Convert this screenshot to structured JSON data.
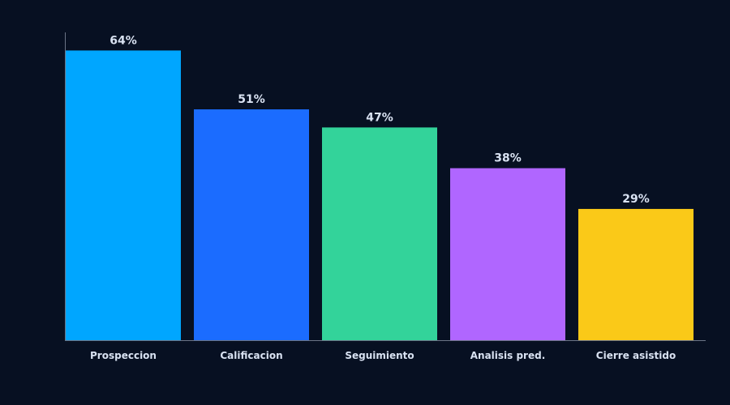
{
  "chart_data": {
    "type": "bar",
    "categories": [
      "Prospeccion",
      "Calificacion",
      "Seguimiento",
      "Analisis pred.",
      "Cierre asistido"
    ],
    "values": [
      64,
      51,
      47,
      38,
      29
    ],
    "value_labels": [
      "64%",
      "51%",
      "47%",
      "38%",
      "29%"
    ],
    "unit": "%",
    "ylim": [
      0,
      68
    ],
    "grid": false,
    "legend": "none",
    "colors": [
      "#00a6ff",
      "#1b6cff",
      "#33d39a",
      "#b066ff",
      "#fac918"
    ]
  },
  "theme": {
    "background": "#071022",
    "axis_color": "#6b7486",
    "label_color": "#d9e2f2"
  }
}
